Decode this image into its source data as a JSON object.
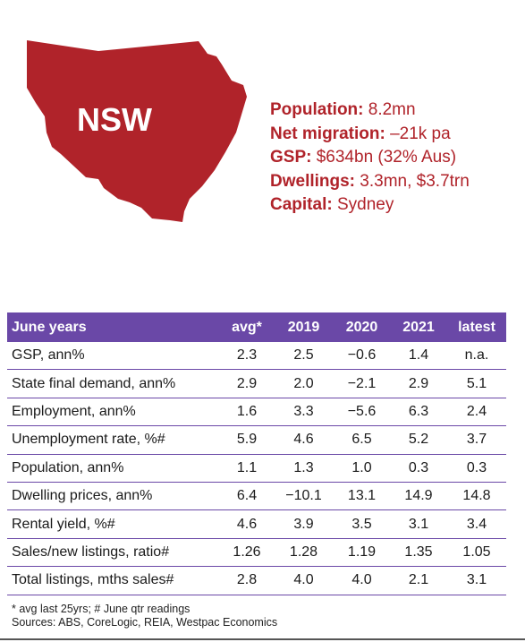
{
  "map": {
    "label": "NSW",
    "fill": "#b0232a"
  },
  "stats": [
    {
      "label": "Population:",
      "value": "8.2mn"
    },
    {
      "label": "Net migration:",
      "value": "–21k pa"
    },
    {
      "label": "GSP:",
      "value": "$634bn (32% Aus)"
    },
    {
      "label": "Dwellings:",
      "value": "3.3mn, $3.7trn"
    },
    {
      "label": "Capital:",
      "value": "Sydney"
    }
  ],
  "table": {
    "headers": [
      "June years",
      "avg*",
      "2019",
      "2020",
      "2021",
      "latest"
    ],
    "rows": [
      [
        "GSP, ann%",
        "2.3",
        "2.5",
        "−0.6",
        "1.4",
        "n.a."
      ],
      [
        "State final demand, ann%",
        "2.9",
        "2.0",
        "−2.1",
        "2.9",
        "5.1"
      ],
      [
        "Employment, ann%",
        "1.6",
        "3.3",
        "−5.6",
        "6.3",
        "2.4"
      ],
      [
        "Unemployment rate, %#",
        "5.9",
        "4.6",
        "6.5",
        "5.2",
        "3.7"
      ],
      [
        "Population, ann%",
        "1.1",
        "1.3",
        "1.0",
        "0.3",
        "0.3"
      ],
      [
        "Dwelling prices, ann%",
        "6.4",
        "−10.1",
        "13.1",
        "14.9",
        "14.8"
      ],
      [
        "Rental yield, %#",
        "4.6",
        "3.9",
        "3.5",
        "3.1",
        "3.4"
      ],
      [
        "Sales/new listings, ratio#",
        "1.26",
        "1.28",
        "1.19",
        "1.35",
        "1.05"
      ],
      [
        "Total listings, mths sales#",
        "2.8",
        "4.0",
        "4.0",
        "2.1",
        "3.1"
      ]
    ]
  },
  "notes": {
    "footnote": "* avg last 25yrs; # June qtr readings",
    "sources": "Sources: ABS, CoreLogic, REIA, Westpac Economics"
  },
  "colors": {
    "accent": "#b0232a",
    "header": "#6a48a7"
  }
}
